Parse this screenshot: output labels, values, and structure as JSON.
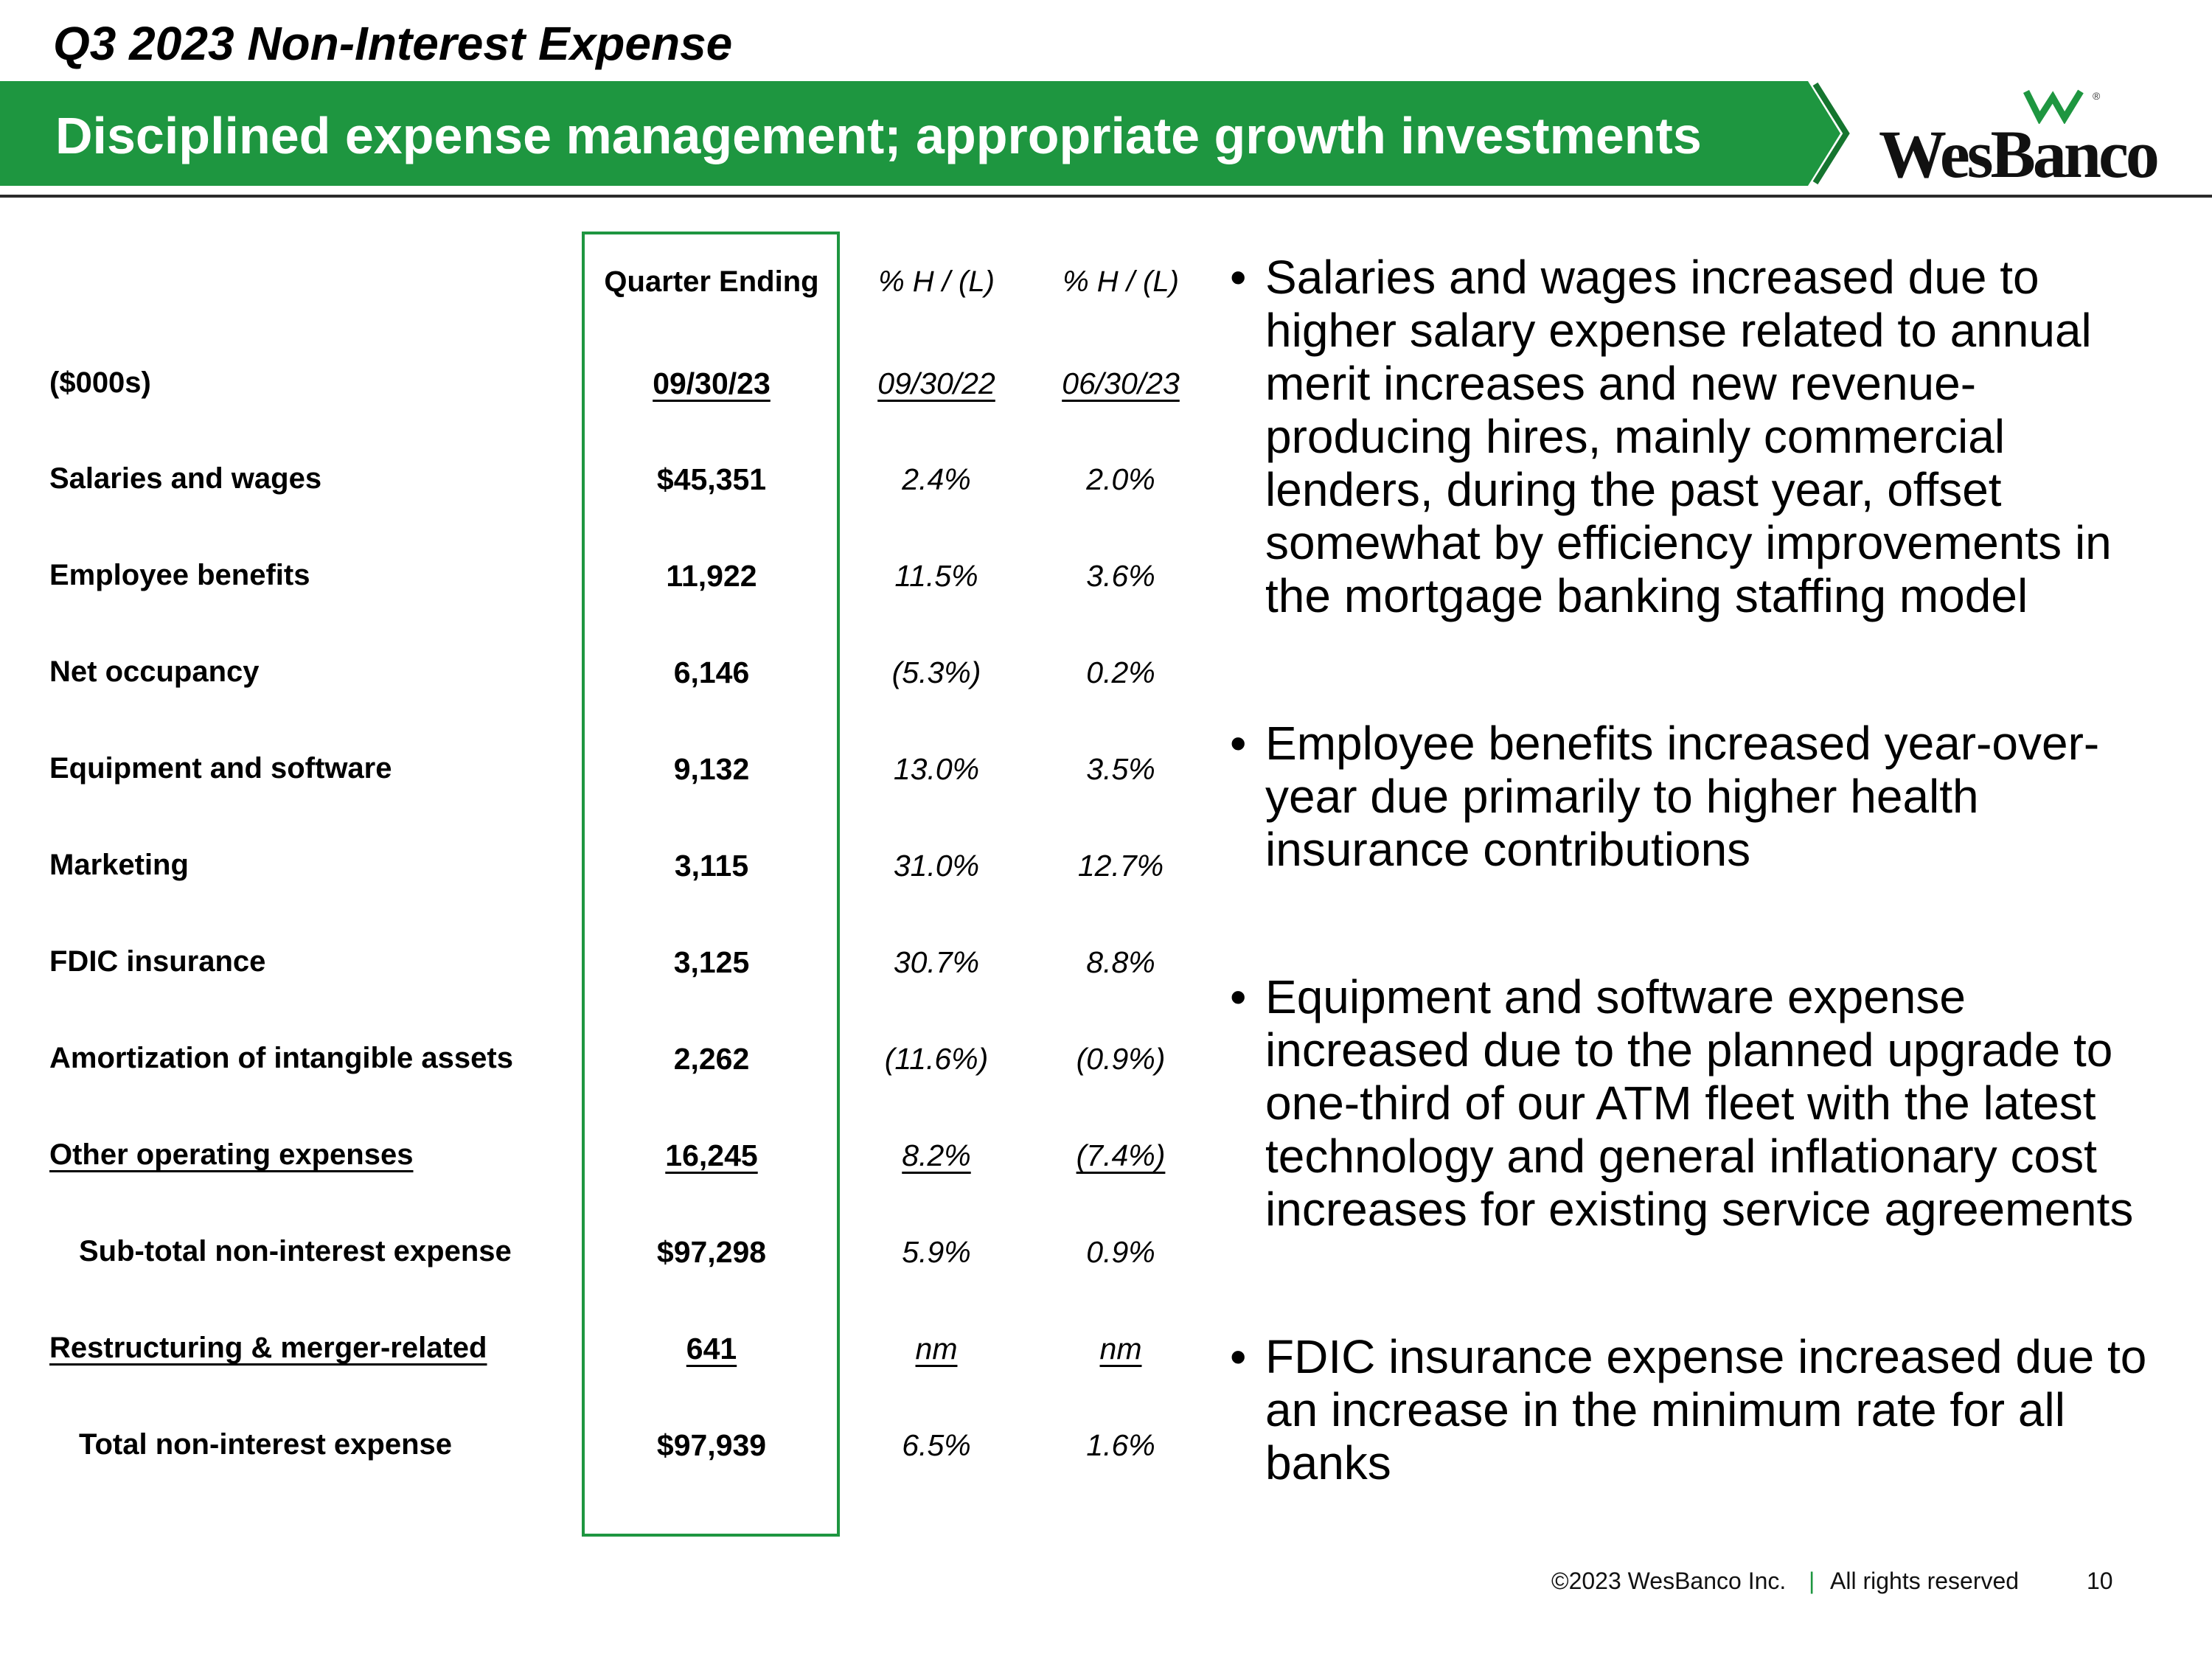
{
  "title": "Q3 2023 Non-Interest Expense",
  "banner": "Disciplined expense management; appropriate growth investments",
  "logo": {
    "text": "WesBanco",
    "reg": "®"
  },
  "colors": {
    "green": "#1e9640",
    "dark_green": "#15752f",
    "accent_gray": "#2b2b2b"
  },
  "table": {
    "headers": {
      "col1": "Quarter Ending",
      "col2": "% H / (L)",
      "col3": "% H / (L)"
    },
    "subheaders": {
      "label": "($000s)",
      "col1": "09/30/23",
      "col2": "09/30/22",
      "col3": "06/30/23"
    },
    "rows": [
      {
        "label": "Salaries and wages",
        "value": "$45,351",
        "yoy": "2.4%",
        "qoq": "2.0%"
      },
      {
        "label": "Employee benefits",
        "value": "11,922",
        "yoy": "11.5%",
        "qoq": "3.6%"
      },
      {
        "label": "Net occupancy",
        "value": "6,146",
        "yoy": "(5.3%)",
        "qoq": "0.2%"
      },
      {
        "label": "Equipment and software",
        "value": "9,132",
        "yoy": "13.0%",
        "qoq": "3.5%"
      },
      {
        "label": "Marketing",
        "value": "3,115",
        "yoy": "31.0%",
        "qoq": "12.7%"
      },
      {
        "label": "FDIC insurance",
        "value": "3,125",
        "yoy": "30.7%",
        "qoq": "8.8%"
      },
      {
        "label": "Amortization of intangible assets",
        "value": "2,262",
        "yoy": "(11.6%)",
        "qoq": "(0.9%)"
      },
      {
        "label": "Other operating expenses",
        "value": "16,245",
        "yoy": "8.2%",
        "qoq": "(7.4%)"
      },
      {
        "label": "Sub-total non-interest expense",
        "value": "$97,298",
        "yoy": "5.9%",
        "qoq": "0.9%"
      },
      {
        "label": "Restructuring & merger-related",
        "value": "641",
        "yoy": "nm",
        "qoq": "nm"
      },
      {
        "label": "Total non-interest expense",
        "value": "$97,939",
        "yoy": "6.5%",
        "qoq": "1.6%"
      }
    ]
  },
  "bullets": [
    "Salaries and wages increased due to higher salary expense related to annual merit increases and new revenue-producing hires, mainly commercial lenders, during the past year, offset somewhat by efficiency improvements in the mortgage banking staffing model",
    "Employee benefits increased year-over-year due primarily to higher health insurance contributions",
    "Equipment and software expense increased due to the planned upgrade to one-third of our ATM fleet with the latest technology and general inflationary cost increases for existing service agreements",
    "FDIC insurance expense increased due to an increase in the minimum rate for all banks"
  ],
  "footer": {
    "copyright": "©2023 WesBanco Inc.",
    "separator": "|",
    "rights": "All rights reserved",
    "page": "10"
  }
}
